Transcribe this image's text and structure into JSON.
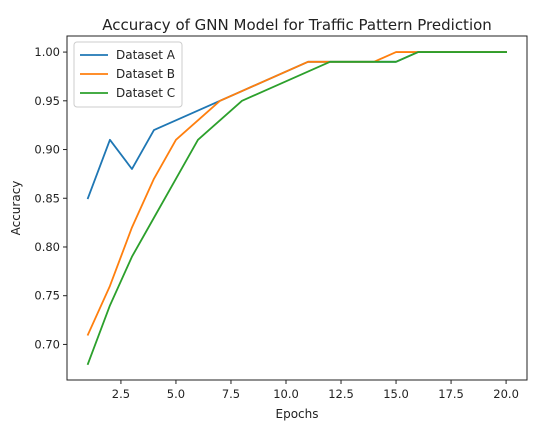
{
  "chart_data": {
    "type": "line",
    "title": "Accuracy of GNN Model for Traffic Pattern Prediction",
    "xlabel": "Epochs",
    "ylabel": "Accuracy",
    "xlim": [
      0.05,
      20.95
    ],
    "ylim": [
      0.6635,
      1.0165
    ],
    "xticks": [
      2.5,
      5.0,
      7.5,
      10.0,
      12.5,
      15.0,
      17.5,
      20.0
    ],
    "yticks": [
      0.7,
      0.75,
      0.8,
      0.85,
      0.9,
      0.95,
      1.0
    ],
    "grid": false,
    "legend_position": "upper-left",
    "x": [
      1,
      2,
      3,
      4,
      5,
      6,
      7,
      8,
      9,
      10,
      11,
      12,
      13,
      14,
      15,
      16,
      17,
      18,
      19,
      20
    ],
    "series": [
      {
        "name": "Dataset A",
        "color": "#1f77b4",
        "values": [
          0.85,
          0.91,
          0.88,
          0.92,
          0.93,
          0.94,
          0.95,
          0.96,
          0.97,
          0.98,
          0.99,
          0.99,
          0.99,
          0.99,
          0.99,
          1.0,
          1.0,
          1.0,
          1.0,
          1.0
        ]
      },
      {
        "name": "Dataset B",
        "color": "#ff7f0e",
        "values": [
          0.71,
          0.76,
          0.82,
          0.87,
          0.91,
          0.93,
          0.95,
          0.96,
          0.97,
          0.98,
          0.99,
          0.99,
          0.99,
          0.99,
          1.0,
          1.0,
          1.0,
          1.0,
          1.0,
          1.0
        ]
      },
      {
        "name": "Dataset C",
        "color": "#2ca02c",
        "values": [
          0.68,
          0.74,
          0.79,
          0.83,
          0.87,
          0.91,
          0.93,
          0.95,
          0.96,
          0.97,
          0.98,
          0.99,
          0.99,
          0.99,
          0.99,
          1.0,
          1.0,
          1.0,
          1.0,
          1.0
        ]
      }
    ]
  }
}
